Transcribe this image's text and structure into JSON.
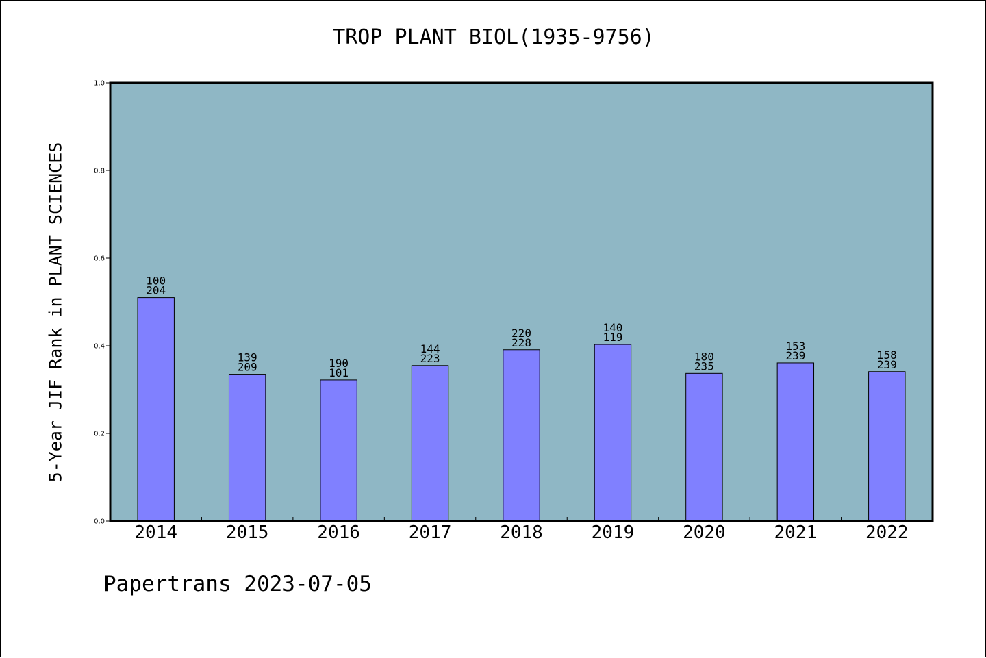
{
  "title": "TROP PLANT BIOL(1935-9756)",
  "footer": "Papertrans 2023-07-05",
  "chart_data": {
    "type": "bar",
    "title": "TROP PLANT BIOL(1935-9756)",
    "xlabel": "",
    "ylabel": "5-Year JIF Rank in PLANT SCIENCES",
    "ylim": [
      0,
      1.0
    ],
    "yticks": [
      "0.0",
      "0.2",
      "0.4",
      "0.6",
      "0.8",
      "1.0"
    ],
    "categories": [
      "2014",
      "2015",
      "2016",
      "2017",
      "2018",
      "2019",
      "2020",
      "2021",
      "2022"
    ],
    "values": [
      0.51,
      0.335,
      0.322,
      0.355,
      0.391,
      0.403,
      0.337,
      0.361,
      0.341
    ],
    "labels_top": [
      "100",
      "139",
      "190",
      "144",
      "220",
      "140",
      "180",
      "153",
      "158"
    ],
    "labels_bottom": [
      "204",
      "209",
      "101",
      "223",
      "228",
      "119",
      "235",
      "239",
      "239"
    ],
    "grid": false,
    "colors": {
      "plot_background": "#8fb7c5",
      "bar_fill": "#8080ff",
      "bar_stroke": "#000000"
    }
  }
}
